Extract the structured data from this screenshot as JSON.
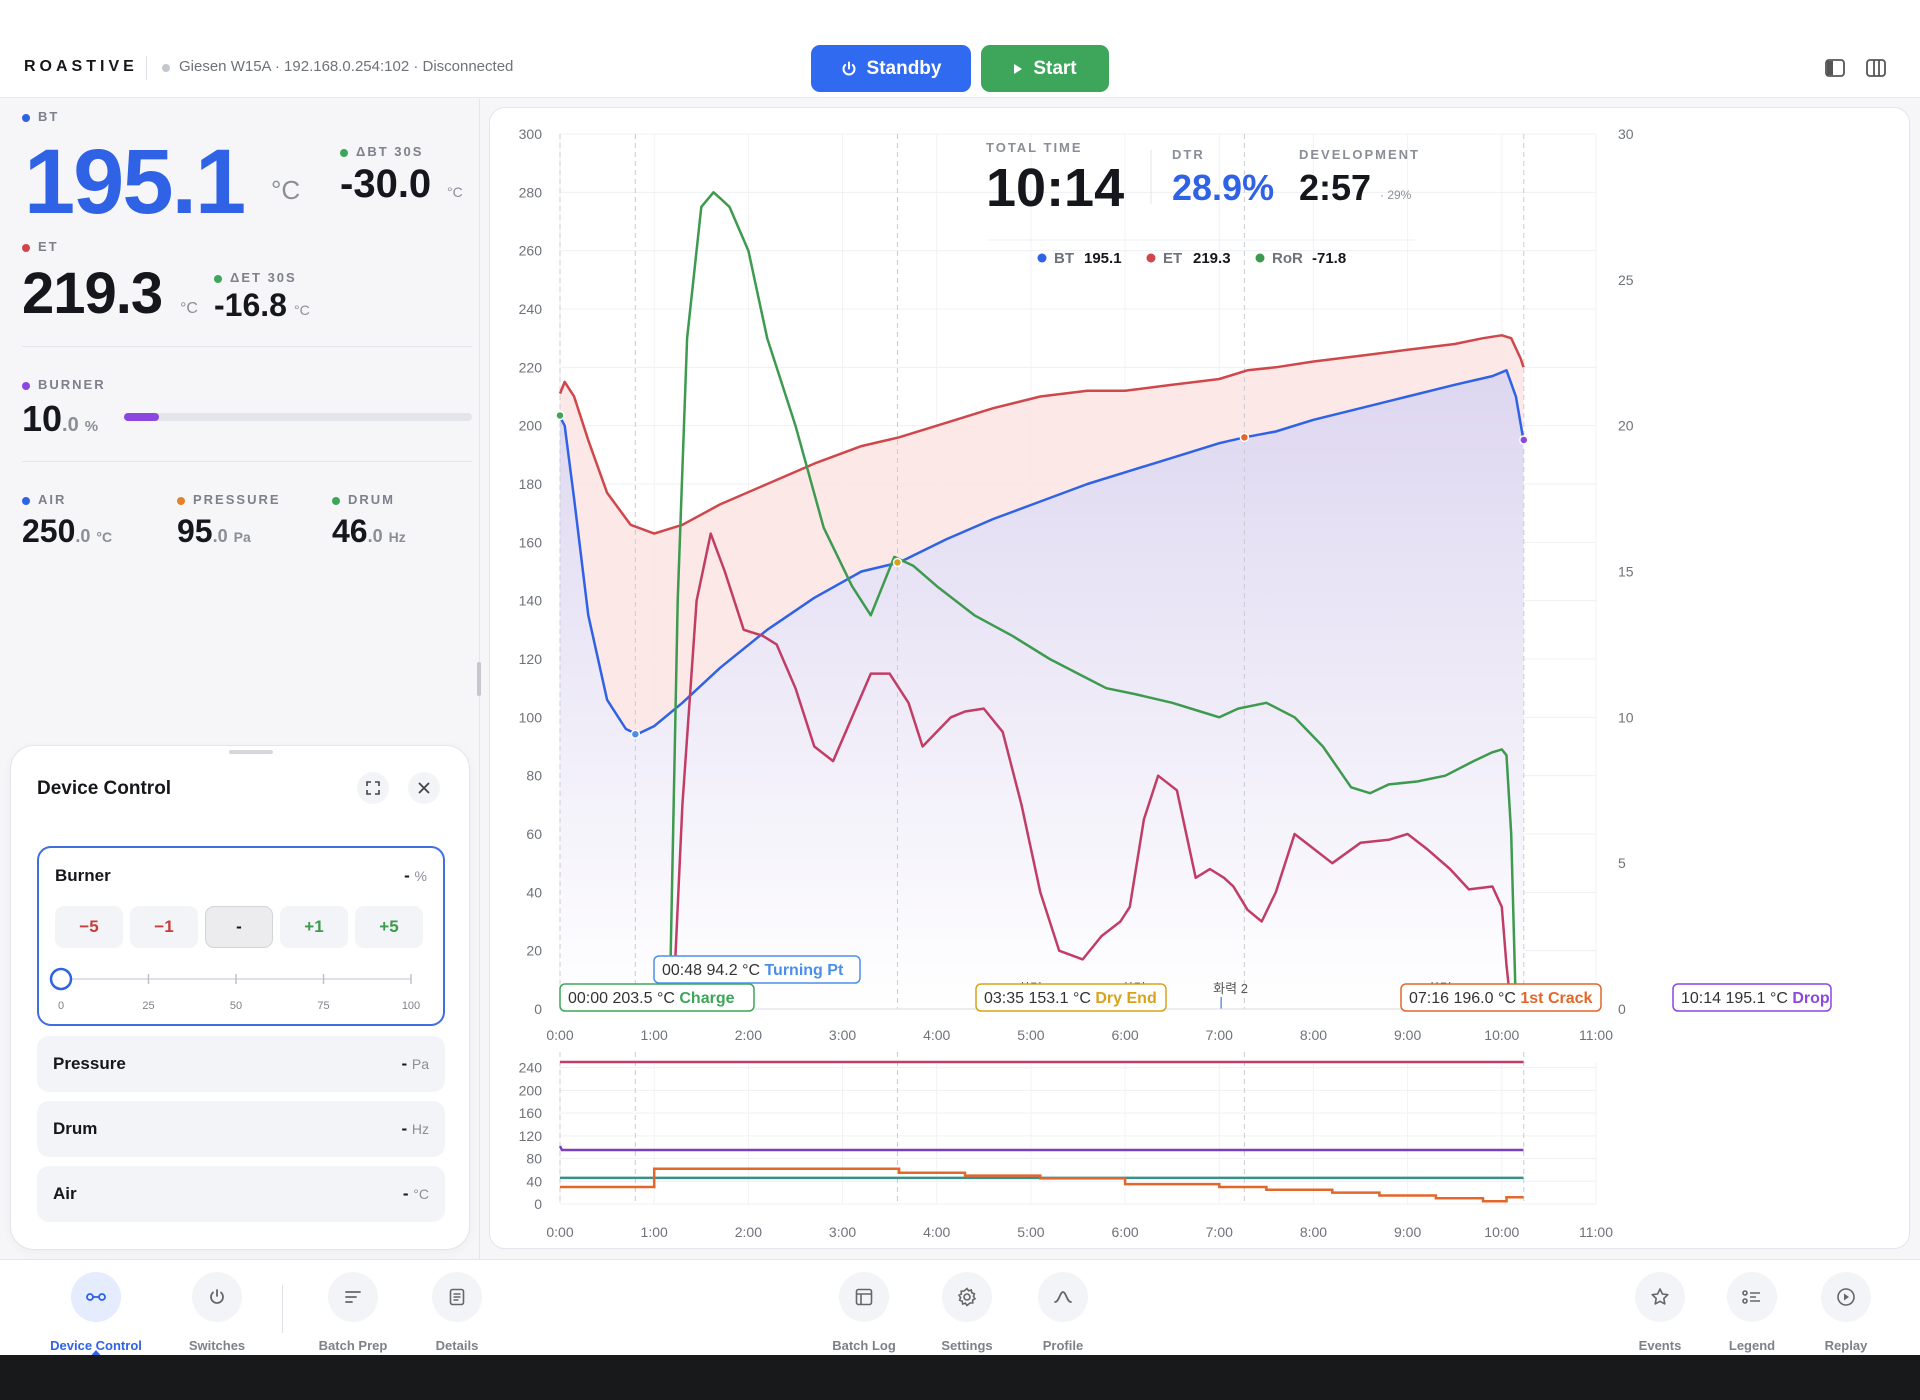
{
  "app": {
    "brand": "ROASTIVE",
    "device_status": "Giesen W15A · 192.168.0.254:102 · Disconnected"
  },
  "toolbar": {
    "standby_label": "Standby",
    "start_label": "Start",
    "colors": {
      "standby": "#2f6af0",
      "start": "#3da65a"
    }
  },
  "readouts": {
    "bt": {
      "label": "BT",
      "value": "195.1",
      "unit": "°C",
      "color": "#2f62e5"
    },
    "dbt": {
      "label": "ΔBT 30S",
      "value": "-30.0",
      "unit": "°C"
    },
    "et": {
      "label": "ET",
      "value": "219.3",
      "unit": "°C",
      "color": "#d0474b"
    },
    "det": {
      "label": "ΔET 30S",
      "value": "-16.8",
      "unit": "°C"
    },
    "burner": {
      "label": "BURNER",
      "int": "10",
      "dec": ".0",
      "unit": "%",
      "level_percent": 10,
      "color": "#8b47e0"
    },
    "air": {
      "label": "AIR",
      "int": "250",
      "dec": ".0",
      "unit": "°C"
    },
    "pressure": {
      "label": "PRESSURE",
      "int": "95",
      "dec": ".0",
      "unit": "Pa"
    },
    "drum": {
      "label": "DRUM",
      "int": "46",
      "dec": ".0",
      "unit": "Hz"
    }
  },
  "device_control": {
    "title": "Device Control",
    "burner": {
      "name": "Burner",
      "value": "-",
      "unit": "%",
      "steps": [
        "−5",
        "−1",
        "-",
        "+1",
        "+5"
      ],
      "slider_ticks": [
        "0",
        "25",
        "50",
        "75",
        "100"
      ],
      "slider_value": 0
    },
    "rows": [
      {
        "name": "Pressure",
        "value": "-",
        "unit": "Pa"
      },
      {
        "name": "Drum",
        "value": "-",
        "unit": "Hz"
      },
      {
        "name": "Air",
        "value": "-",
        "unit": "°C"
      }
    ]
  },
  "stats": {
    "total_time_label": "TOTAL TIME",
    "total_time": "10:14",
    "dtr_label": "DTR",
    "dtr": "28.9%",
    "development_label": "DEVELOPMENT",
    "development": "2:57",
    "development_pct": "· 29%"
  },
  "legend": [
    {
      "name": "BT",
      "value": "195.1",
      "color": "#2f62e5"
    },
    {
      "name": "ET",
      "value": "219.3",
      "color": "#d0474b"
    },
    {
      "name": "RoR",
      "value": "-71.8",
      "color": "#3d9a4f"
    }
  ],
  "chart_data": [
    {
      "type": "line",
      "x_ticks": [
        "0:00",
        "1:00",
        "2:00",
        "3:00",
        "4:00",
        "5:00",
        "6:00",
        "7:00",
        "8:00",
        "9:00",
        "10:00",
        "11:00"
      ],
      "xlim": [
        0,
        11
      ],
      "ylim": [
        0,
        300
      ],
      "y_ticks": [
        "0",
        "20",
        "40",
        "60",
        "80",
        "100",
        "120",
        "140",
        "160",
        "180",
        "200",
        "220",
        "240",
        "260",
        "280",
        "300"
      ],
      "y2lim": [
        0,
        30
      ],
      "y2_ticks": [
        "0",
        "5",
        "10",
        "15",
        "20",
        "25",
        "30"
      ],
      "series": [
        {
          "name": "ET",
          "axis": "y",
          "color": "#d0474b",
          "fill": "#fbe6e4",
          "x": [
            0,
            0.05,
            0.15,
            0.3,
            0.5,
            0.75,
            1.0,
            1.3,
            1.7,
            2.2,
            2.7,
            3.2,
            3.6,
            4.1,
            4.6,
            5.1,
            5.6,
            6.0,
            6.5,
            7.0,
            7.3,
            7.6,
            8.0,
            8.5,
            9.0,
            9.5,
            9.8,
            10.0,
            10.1,
            10.2,
            10.23
          ],
          "y": [
            211,
            215,
            210,
            195,
            177,
            166,
            163,
            166,
            173,
            180,
            187,
            193,
            196,
            201,
            206,
            210,
            212,
            212,
            214,
            216,
            219,
            220,
            222,
            224,
            226,
            228,
            230,
            231,
            230,
            223,
            220
          ]
        },
        {
          "name": "BT",
          "axis": "y",
          "color": "#2f62e5",
          "fill": "#e6e1f3",
          "x": [
            0,
            0.05,
            0.15,
            0.3,
            0.5,
            0.7,
            0.82,
            1.0,
            1.3,
            1.7,
            2.2,
            2.7,
            3.2,
            3.6,
            4.1,
            4.6,
            5.1,
            5.6,
            6.0,
            6.5,
            7.0,
            7.27,
            7.6,
            8.0,
            8.5,
            9.0,
            9.5,
            9.9,
            10.05,
            10.15,
            10.23
          ],
          "y": [
            203,
            200,
            175,
            135,
            106,
            96,
            94.2,
            97,
            105,
            117,
            130,
            141,
            150,
            153.1,
            161,
            168,
            174,
            180,
            184,
            189,
            194,
            196,
            198,
            202,
            206,
            210,
            214,
            217,
            219,
            210,
            195
          ]
        },
        {
          "name": "RoR",
          "axis": "y2",
          "color": "#3d9a4f",
          "x": [
            1.17,
            1.25,
            1.35,
            1.5,
            1.63,
            1.7,
            1.8,
            2.0,
            2.2,
            2.5,
            2.8,
            3.1,
            3.3,
            3.55,
            3.75,
            4.0,
            4.4,
            4.8,
            5.2,
            5.5,
            5.8,
            6.1,
            6.5,
            6.8,
            7.0,
            7.2,
            7.5,
            7.8,
            8.1,
            8.4,
            8.6,
            8.8,
            9.1,
            9.4,
            9.7,
            9.9,
            10.0,
            10.05,
            10.1,
            10.15
          ],
          "y": [
            1,
            14,
            23,
            27.5,
            28,
            27.8,
            27.5,
            26,
            23,
            20,
            16.5,
            14.5,
            13.5,
            15.5,
            15.2,
            14.5,
            13.5,
            12.8,
            12,
            11.5,
            11,
            10.8,
            10.5,
            10.2,
            10,
            10.3,
            10.5,
            10,
            9,
            7.6,
            7.4,
            7.7,
            7.8,
            8,
            8.5,
            8.8,
            8.9,
            8.7,
            6,
            0
          ]
        },
        {
          "name": "Burner",
          "axis": "y2",
          "color": "#c13d66",
          "x": [
            1.2,
            1.3,
            1.45,
            1.6,
            1.75,
            1.95,
            2.15,
            2.3,
            2.5,
            2.7,
            2.9,
            3.1,
            3.3,
            3.5,
            3.7,
            3.85,
            4.0,
            4.15,
            4.3,
            4.5,
            4.7,
            4.9,
            5.1,
            5.3,
            5.55,
            5.75,
            5.95,
            6.05,
            6.2,
            6.35,
            6.55,
            6.75,
            6.9,
            7.05,
            7.15,
            7.3,
            7.45,
            7.6,
            7.8,
            8.0,
            8.2,
            8.5,
            8.8,
            9.0,
            9.2,
            9.45,
            9.65,
            9.9,
            10.0,
            10.05,
            10.1
          ],
          "y": [
            0,
            7,
            14,
            16.3,
            15,
            13,
            12.8,
            12.5,
            11,
            9,
            8.5,
            10,
            11.5,
            11.5,
            10.5,
            9,
            9.5,
            10,
            10.2,
            10.3,
            9.5,
            7,
            4,
            2,
            1.7,
            2.5,
            3,
            3.5,
            6.5,
            8,
            7.5,
            4.5,
            4.8,
            4.5,
            4.2,
            3.4,
            3,
            4,
            6,
            5.5,
            5,
            5.7,
            5.8,
            6,
            5.5,
            4.8,
            4.1,
            4.2,
            3.5,
            1.5,
            0
          ]
        }
      ],
      "events": [
        {
          "time": "00:00",
          "temp": "203.5 °C",
          "name": "Charge",
          "color": "#3da65a"
        },
        {
          "time": "00:48",
          "temp": "94.2 °C",
          "name": "Turning Pt",
          "color": "#4b90e8"
        },
        {
          "time": "03:35",
          "temp": "153.1 °C",
          "name": "Dry End",
          "color": "#d9a21b"
        },
        {
          "time": "07:16",
          "temp": "196.0 °C",
          "name": "1st Crack",
          "color": "#e2672a"
        },
        {
          "time": "10:14",
          "temp": "195.1 °C",
          "name": "Drop",
          "color": "#8b47e0"
        }
      ],
      "burner_marks": [
        "화력 42",
        "화력 30",
        "화력 2",
        "화력 6"
      ]
    },
    {
      "type": "line",
      "x_ticks": [
        "0:00",
        "1:00",
        "2:00",
        "3:00",
        "4:00",
        "5:00",
        "6:00",
        "7:00",
        "8:00",
        "9:00",
        "10:00",
        "11:00"
      ],
      "xlim": [
        0,
        11
      ],
      "ylim": [
        0,
        250
      ],
      "y_ticks": [
        "0",
        "40",
        "80",
        "120",
        "160",
        "200",
        "240"
      ],
      "series": [
        {
          "color": "#c13d66",
          "x": [
            0,
            10.23
          ],
          "y": [
            250,
            250
          ]
        },
        {
          "color": "#7b3fb8",
          "x": [
            0,
            0.02,
            10.23
          ],
          "y": [
            102,
            95,
            95
          ]
        },
        {
          "color": "#3a8f8a",
          "x": [
            0,
            10.23
          ],
          "y": [
            46,
            46
          ]
        },
        {
          "color": "#e2672a",
          "x": [
            0,
            1.0,
            1.0,
            3.6,
            3.6,
            4.3,
            4.3,
            5.1,
            5.1,
            6.0,
            6.0,
            7.0,
            7.0,
            7.5,
            7.5,
            8.2,
            8.2,
            8.7,
            8.7,
            9.3,
            9.3,
            9.8,
            9.8,
            10.05,
            10.05,
            10.23
          ],
          "y": [
            30,
            30,
            62,
            62,
            55,
            55,
            50,
            50,
            45,
            45,
            35,
            35,
            30,
            30,
            25,
            25,
            20,
            20,
            15,
            15,
            10,
            10,
            5,
            5,
            12,
            12
          ]
        }
      ]
    }
  ],
  "nav": {
    "items": [
      {
        "label": "Device Control",
        "icon": "device-control-icon",
        "active": true
      },
      {
        "label": "Switches",
        "icon": "power-icon"
      },
      {
        "label": "Batch Prep",
        "icon": "batch-prep-icon"
      },
      {
        "label": "Details",
        "icon": "details-icon"
      },
      {
        "label": "Batch Log",
        "icon": "batch-log-icon"
      },
      {
        "label": "Settings",
        "icon": "gear-icon"
      },
      {
        "label": "Profile",
        "icon": "profile-curve-icon"
      },
      {
        "label": "Events",
        "icon": "star-icon"
      },
      {
        "label": "Legend",
        "icon": "legend-list-icon"
      },
      {
        "label": "Replay",
        "icon": "play-icon"
      }
    ]
  }
}
